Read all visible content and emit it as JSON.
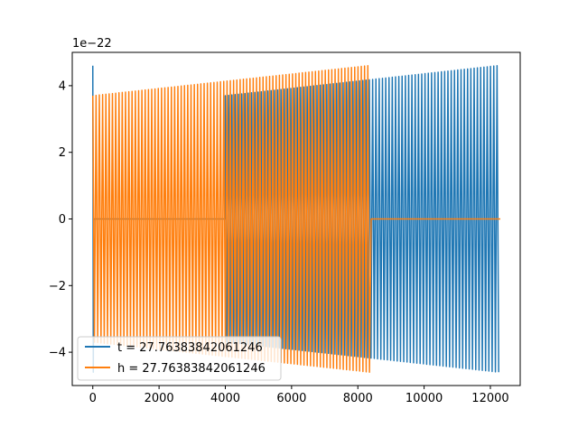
{
  "chart_data": {
    "type": "line",
    "title": "",
    "xlabel": "",
    "ylabel": "",
    "offset_text": "1e−22",
    "xlim": [
      -620,
      12900
    ],
    "ylim": [
      -5.0,
      5.0
    ],
    "x_ticks": [
      0,
      2000,
      4000,
      6000,
      8000,
      10000,
      12000
    ],
    "x_tick_labels": [
      "0",
      "2000",
      "4000",
      "6000",
      "8000",
      "10000",
      "12000"
    ],
    "y_ticks": [
      -4,
      -2,
      0,
      2,
      4
    ],
    "y_tick_labels": [
      "−4",
      "−2",
      "0",
      "2",
      "4"
    ],
    "grid": false,
    "legend_position": "lower left",
    "series": [
      {
        "name": "t = 27.76383842061246",
        "color": "#1f77b4",
        "segments": [
          {
            "x_start": 0,
            "x_end": 30,
            "amp_start": 4.6,
            "amp_end": 4.6,
            "cycles": 1
          },
          {
            "x_start": 30,
            "x_end": 4000,
            "flat": 0
          },
          {
            "x_start": 4000,
            "x_end": 12300,
            "amp_start": 3.7,
            "amp_end": 4.6,
            "cycles": 84
          }
        ]
      },
      {
        "name": "h = 27.76383842061246",
        "color": "#ff7f0e",
        "segments": [
          {
            "x_start": 0,
            "x_end": 8400,
            "amp_start": 3.7,
            "amp_end": 4.6,
            "cycles": 85
          },
          {
            "x_start": 8400,
            "x_end": 12300,
            "flat": 0
          }
        ]
      }
    ]
  }
}
